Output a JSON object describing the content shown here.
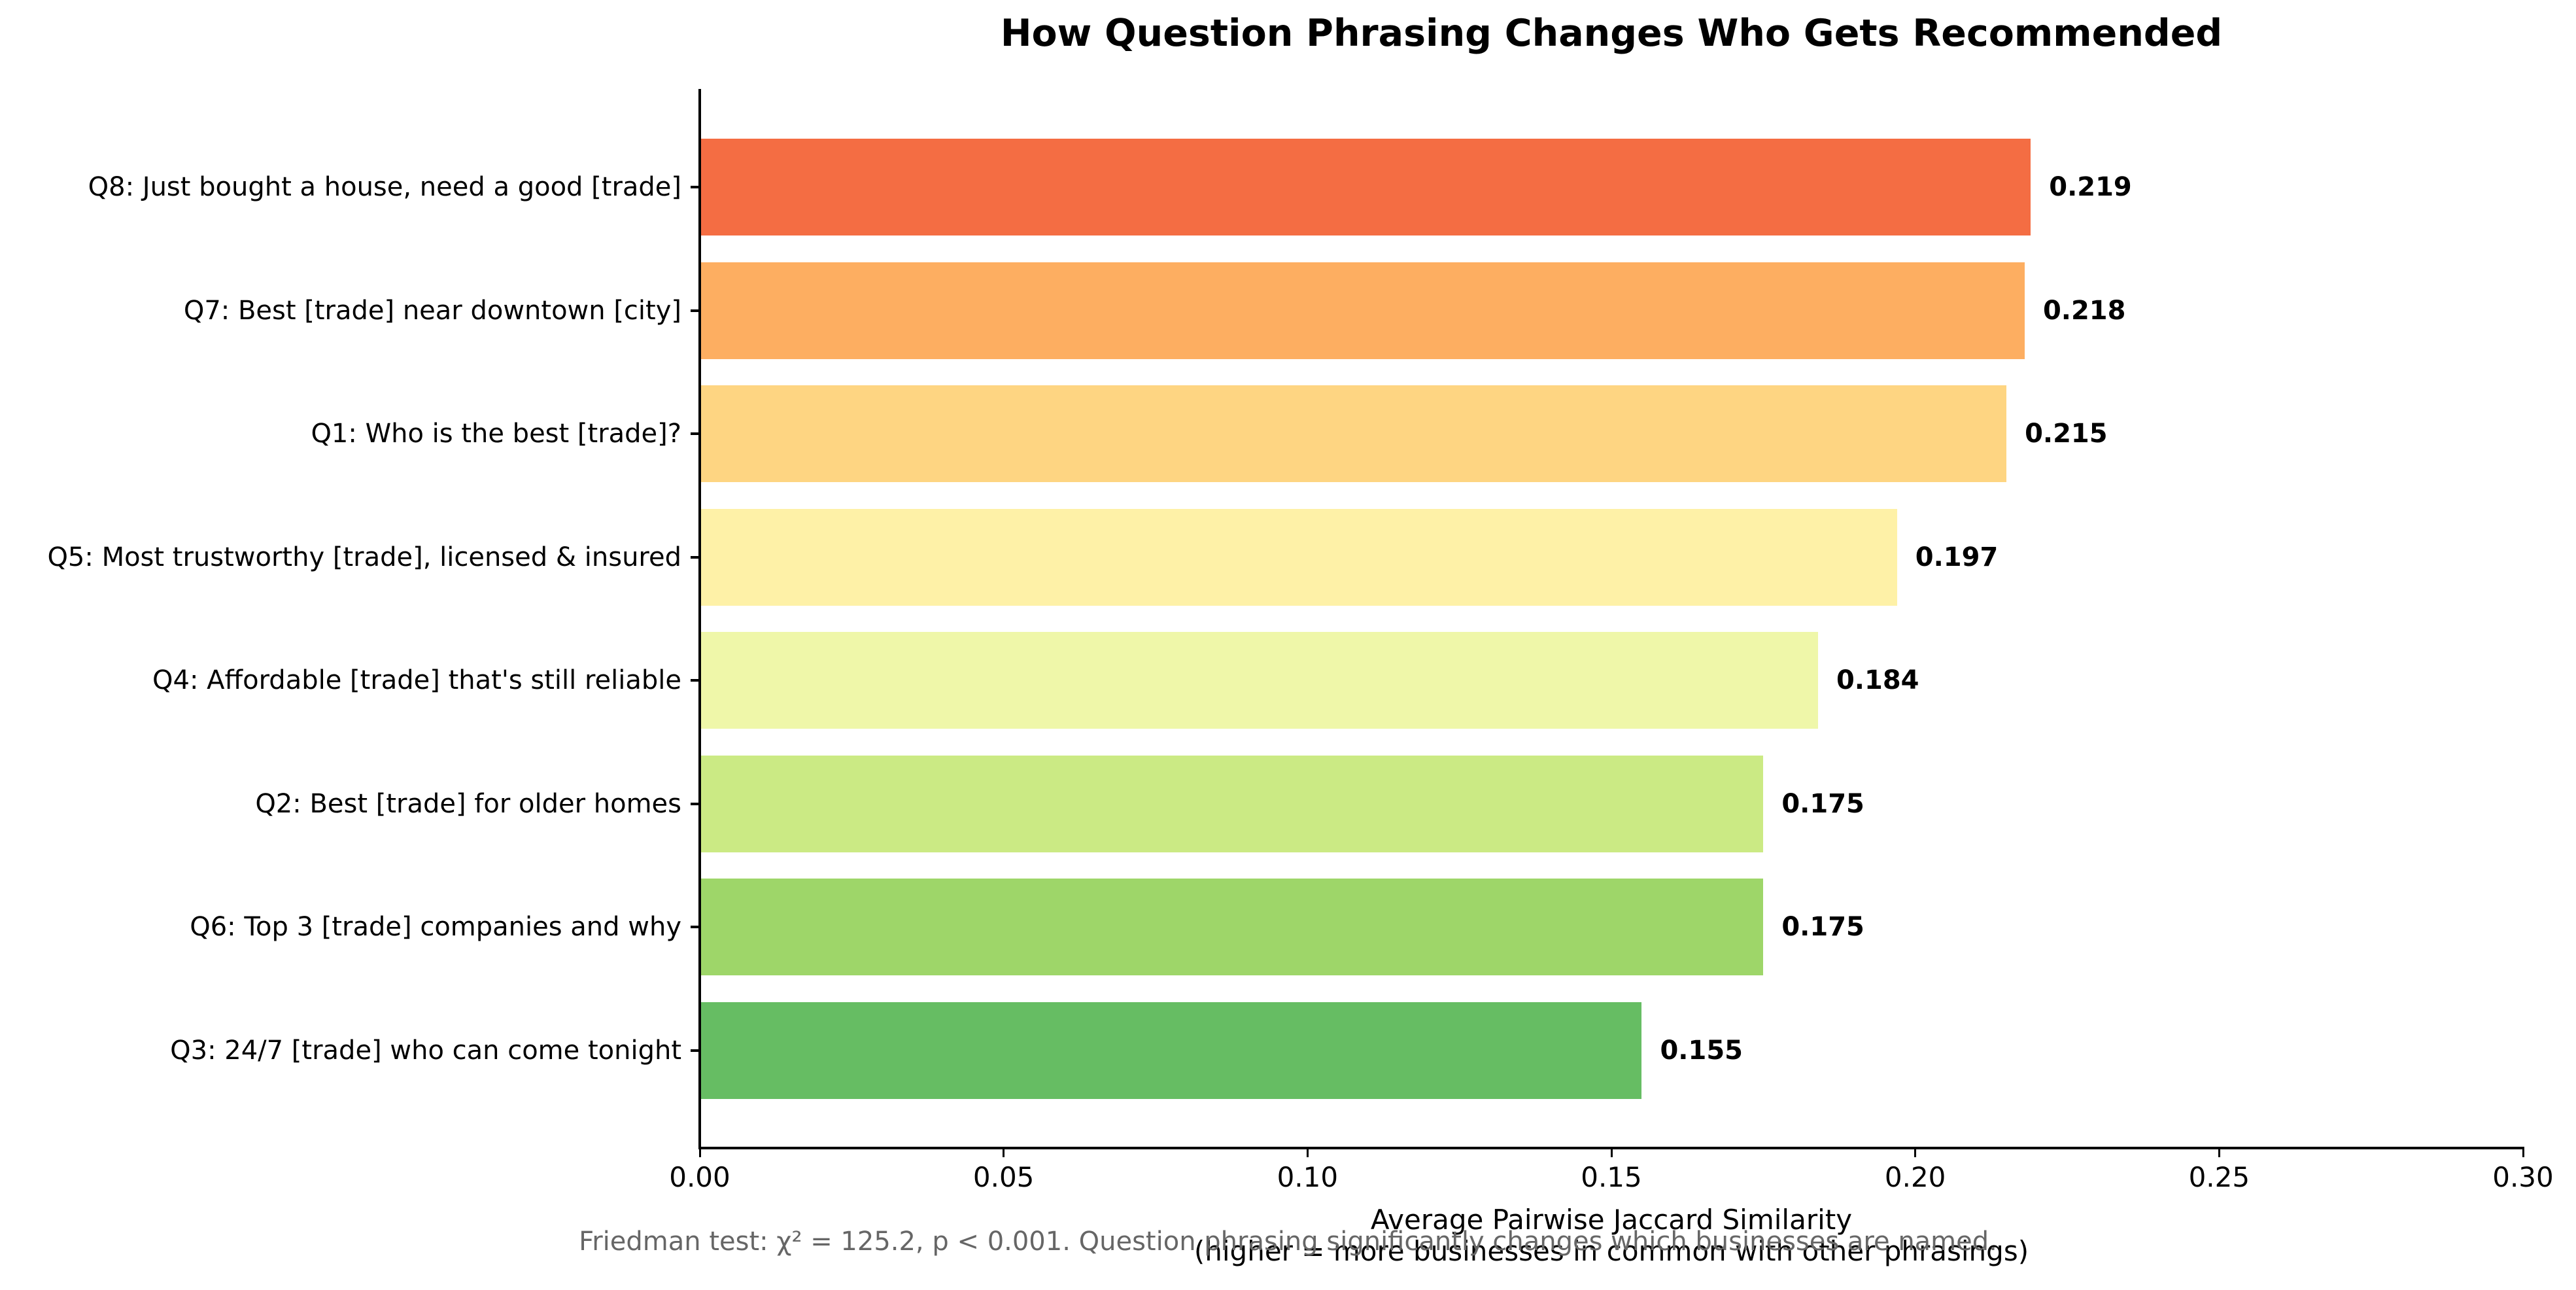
{
  "chart_data": {
    "type": "bar",
    "orientation": "horizontal",
    "title": "How Question Phrasing Changes Who Gets Recommended",
    "xlabel_line1": "Average Pairwise Jaccard Similarity",
    "xlabel_line2": "(higher = more businesses in common with other phrasings)",
    "ylabel": "",
    "xlim": [
      0.0,
      0.3
    ],
    "xticks": [
      "0.00",
      "0.05",
      "0.10",
      "0.15",
      "0.20",
      "0.25",
      "0.30"
    ],
    "grid": false,
    "legend": null,
    "categories": [
      "Q8: Just bought a house, need a good [trade]",
      "Q7: Best [trade] near downtown [city]",
      "Q1: Who is the best [trade]?",
      "Q5: Most trustworthy [trade], licensed & insured",
      "Q4: Affordable [trade] that's still reliable",
      "Q2: Best [trade] for older homes",
      "Q6: Top 3 [trade] companies and why",
      "Q3: 24/7 [trade] who can come tonight"
    ],
    "values": [
      0.219,
      0.218,
      0.215,
      0.197,
      0.184,
      0.175,
      0.175,
      0.155
    ],
    "value_labels": [
      "0.219",
      "0.218",
      "0.215",
      "0.197",
      "0.184",
      "0.175",
      "0.175",
      "0.155"
    ],
    "colors": [
      "#f46d43",
      "#fdae61",
      "#fed582",
      "#fef1a7",
      "#eff7a9",
      "#cbea84",
      "#9ed669",
      "#66bd63"
    ],
    "annotation": "Friedman test: χ² = 125.2, p < 0.001. Question phrasing significantly changes which businesses are named."
  }
}
